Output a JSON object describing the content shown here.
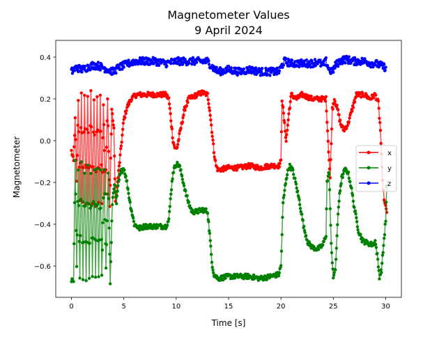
{
  "chart_data": {
    "type": "line",
    "title": "Magnetometer Values",
    "subtitle": "9 April 2024",
    "xlabel": "Time [s]",
    "ylabel": "Magnetometer",
    "xlim": [
      -1.5,
      31.5
    ],
    "ylim": [
      -0.75,
      0.48
    ],
    "xticks": [
      0,
      5,
      10,
      15,
      20,
      25,
      30
    ],
    "yticks": [
      -0.6,
      -0.4,
      -0.2,
      0.0,
      0.2,
      0.4
    ],
    "xtick_labels": [
      "0",
      "5",
      "10",
      "15",
      "20",
      "25",
      "30"
    ],
    "ytick_labels": [
      "−0.6",
      "−0.4",
      "−0.2",
      "0.0",
      "0.2",
      "0.4"
    ],
    "grid": false,
    "legend_position": "center-right",
    "series": [
      {
        "name": "x",
        "color": "#ff0000",
        "keyframes": [
          [
            0,
            -0.05
          ],
          [
            0.2,
            -0.1
          ],
          [
            0.35,
            0.1
          ],
          [
            0.5,
            -0.2
          ],
          [
            0.65,
            0.2
          ],
          [
            0.8,
            -0.28
          ],
          [
            0.95,
            0.22
          ],
          [
            1.1,
            -0.3
          ],
          [
            1.25,
            0.22
          ],
          [
            1.4,
            -0.3
          ],
          [
            1.55,
            0.22
          ],
          [
            1.7,
            -0.3
          ],
          [
            1.85,
            0.24
          ],
          [
            2.0,
            -0.3
          ],
          [
            2.15,
            0.2
          ],
          [
            2.3,
            -0.32
          ],
          [
            2.45,
            0.22
          ],
          [
            2.6,
            -0.3
          ],
          [
            2.75,
            0.22
          ],
          [
            2.9,
            -0.3
          ],
          [
            3.05,
            0.18
          ],
          [
            3.25,
            -0.25
          ],
          [
            3.45,
            0.2
          ],
          [
            3.65,
            -0.32
          ],
          [
            3.85,
            0.15
          ],
          [
            4.05,
            0.05
          ],
          [
            4.2,
            -0.3
          ],
          [
            4.4,
            -0.2
          ],
          [
            4.6,
            -0.1
          ],
          [
            4.8,
            0.0
          ],
          [
            5.0,
            0.1
          ],
          [
            5.3,
            0.16
          ],
          [
            5.7,
            0.2
          ],
          [
            6.2,
            0.22
          ],
          [
            7,
            0.22
          ],
          [
            8,
            0.22
          ],
          [
            9,
            0.22
          ],
          [
            9.3,
            0.2
          ],
          [
            9.5,
            0.1
          ],
          [
            9.7,
            0.0
          ],
          [
            9.9,
            -0.04
          ],
          [
            10.1,
            -0.03
          ],
          [
            10.4,
            0.05
          ],
          [
            10.8,
            0.15
          ],
          [
            11.2,
            0.2
          ],
          [
            12,
            0.22
          ],
          [
            12.5,
            0.23
          ],
          [
            13,
            0.22
          ],
          [
            13.2,
            0.15
          ],
          [
            13.4,
            0.05
          ],
          [
            13.6,
            -0.05
          ],
          [
            13.8,
            -0.12
          ],
          [
            14.0,
            -0.14
          ],
          [
            15,
            -0.13
          ],
          [
            16,
            -0.13
          ],
          [
            17,
            -0.12
          ],
          [
            18,
            -0.13
          ],
          [
            19,
            -0.12
          ],
          [
            19.8,
            -0.12
          ],
          [
            20.0,
            -0.1
          ],
          [
            20.1,
            0.2
          ],
          [
            20.3,
            0.1
          ],
          [
            20.5,
            0.0
          ],
          [
            20.8,
            0.15
          ],
          [
            21,
            0.22
          ],
          [
            21.5,
            0.2
          ],
          [
            22,
            0.22
          ],
          [
            23,
            0.2
          ],
          [
            24,
            0.2
          ],
          [
            24.3,
            0.2
          ],
          [
            24.5,
            0.0
          ],
          [
            24.7,
            -0.18
          ],
          [
            24.9,
            0.15
          ],
          [
            25.1,
            0.2
          ],
          [
            25.4,
            0.15
          ],
          [
            25.7,
            0.08
          ],
          [
            26.0,
            0.05
          ],
          [
            26.4,
            0.08
          ],
          [
            26.8,
            0.15
          ],
          [
            27.2,
            0.22
          ],
          [
            28,
            0.22
          ],
          [
            28.5,
            0.2
          ],
          [
            29,
            0.22
          ],
          [
            29.3,
            0.18
          ],
          [
            29.5,
            0.05
          ],
          [
            29.7,
            -0.2
          ],
          [
            29.9,
            -0.3
          ],
          [
            30.1,
            -0.34
          ]
        ]
      },
      {
        "name": "y",
        "color": "#008000",
        "keyframes": [
          [
            0,
            -0.67
          ],
          [
            0.2,
            -0.68
          ],
          [
            0.35,
            -0.1
          ],
          [
            0.5,
            -0.6
          ],
          [
            0.65,
            -0.15
          ],
          [
            0.8,
            -0.65
          ],
          [
            0.95,
            -0.1
          ],
          [
            1.1,
            -0.67
          ],
          [
            1.25,
            -0.15
          ],
          [
            1.4,
            -0.66
          ],
          [
            1.55,
            -0.12
          ],
          [
            1.7,
            -0.66
          ],
          [
            1.85,
            -0.15
          ],
          [
            2.0,
            -0.64
          ],
          [
            2.15,
            -0.13
          ],
          [
            2.3,
            -0.66
          ],
          [
            2.45,
            -0.13
          ],
          [
            2.6,
            -0.65
          ],
          [
            2.75,
            -0.15
          ],
          [
            2.9,
            -0.65
          ],
          [
            3.1,
            -0.15
          ],
          [
            3.3,
            -0.6
          ],
          [
            3.5,
            -0.15
          ],
          [
            3.7,
            -0.68
          ],
          [
            3.9,
            -0.3
          ],
          [
            4.1,
            -0.2
          ],
          [
            4.3,
            -0.3
          ],
          [
            4.5,
            -0.2
          ],
          [
            4.7,
            -0.15
          ],
          [
            5.0,
            -0.13
          ],
          [
            5.3,
            -0.2
          ],
          [
            5.6,
            -0.3
          ],
          [
            6.0,
            -0.4
          ],
          [
            6.5,
            -0.42
          ],
          [
            7,
            -0.41
          ],
          [
            8,
            -0.41
          ],
          [
            9,
            -0.41
          ],
          [
            9.3,
            -0.38
          ],
          [
            9.5,
            -0.25
          ],
          [
            9.7,
            -0.15
          ],
          [
            10.0,
            -0.11
          ],
          [
            10.3,
            -0.12
          ],
          [
            10.6,
            -0.18
          ],
          [
            10.9,
            -0.25
          ],
          [
            11.2,
            -0.3
          ],
          [
            11.5,
            -0.34
          ],
          [
            12,
            -0.34
          ],
          [
            12.5,
            -0.33
          ],
          [
            13,
            -0.34
          ],
          [
            13.2,
            -0.45
          ],
          [
            13.4,
            -0.58
          ],
          [
            13.6,
            -0.64
          ],
          [
            14,
            -0.66
          ],
          [
            15,
            -0.65
          ],
          [
            16,
            -0.65
          ],
          [
            17,
            -0.65
          ],
          [
            18,
            -0.66
          ],
          [
            19,
            -0.65
          ],
          [
            19.8,
            -0.64
          ],
          [
            20.0,
            -0.6
          ],
          [
            20.2,
            -0.3
          ],
          [
            20.5,
            -0.18
          ],
          [
            20.8,
            -0.12
          ],
          [
            21.1,
            -0.14
          ],
          [
            21.4,
            -0.2
          ],
          [
            21.8,
            -0.3
          ],
          [
            22.2,
            -0.42
          ],
          [
            22.6,
            -0.49
          ],
          [
            23,
            -0.51
          ],
          [
            23.5,
            -0.52
          ],
          [
            24,
            -0.5
          ],
          [
            24.3,
            -0.45
          ],
          [
            24.4,
            -0.2
          ],
          [
            24.6,
            -0.15
          ],
          [
            24.8,
            -0.5
          ],
          [
            25,
            -0.65
          ],
          [
            25.2,
            -0.62
          ],
          [
            25.4,
            -0.4
          ],
          [
            25.6,
            -0.25
          ],
          [
            25.8,
            -0.18
          ],
          [
            26.1,
            -0.14
          ],
          [
            26.4,
            -0.15
          ],
          [
            26.7,
            -0.22
          ],
          [
            27,
            -0.32
          ],
          [
            27.4,
            -0.43
          ],
          [
            27.8,
            -0.48
          ],
          [
            28.3,
            -0.49
          ],
          [
            28.8,
            -0.5
          ],
          [
            29,
            -0.48
          ],
          [
            29.2,
            -0.55
          ],
          [
            29.4,
            -0.65
          ],
          [
            29.6,
            -0.62
          ],
          [
            29.8,
            -0.5
          ],
          [
            30.0,
            -0.38
          ],
          [
            30.1,
            -0.22
          ]
        ]
      },
      {
        "name": "z",
        "color": "#0000ff",
        "keyframes": [
          [
            0,
            0.33
          ],
          [
            0.5,
            0.35
          ],
          [
            1,
            0.34
          ],
          [
            1.5,
            0.35
          ],
          [
            2,
            0.36
          ],
          [
            2.5,
            0.36
          ],
          [
            3,
            0.35
          ],
          [
            3.5,
            0.34
          ],
          [
            4,
            0.33
          ],
          [
            4.5,
            0.35
          ],
          [
            5,
            0.36
          ],
          [
            5.5,
            0.37
          ],
          [
            6,
            0.38
          ],
          [
            7,
            0.38
          ],
          [
            8,
            0.38
          ],
          [
            9,
            0.37
          ],
          [
            10,
            0.38
          ],
          [
            11,
            0.38
          ],
          [
            12,
            0.38
          ],
          [
            13,
            0.38
          ],
          [
            13.5,
            0.35
          ],
          [
            14,
            0.33
          ],
          [
            15,
            0.34
          ],
          [
            16,
            0.33
          ],
          [
            17,
            0.34
          ],
          [
            18,
            0.33
          ],
          [
            19,
            0.33
          ],
          [
            19.8,
            0.33
          ],
          [
            20.3,
            0.38
          ],
          [
            21,
            0.37
          ],
          [
            22,
            0.37
          ],
          [
            23,
            0.37
          ],
          [
            23.5,
            0.38
          ],
          [
            24,
            0.36
          ],
          [
            24.3,
            0.38
          ],
          [
            24.6,
            0.34
          ],
          [
            24.9,
            0.33
          ],
          [
            25.2,
            0.36
          ],
          [
            25.6,
            0.38
          ],
          [
            26.1,
            0.39
          ],
          [
            27,
            0.38
          ],
          [
            28,
            0.38
          ],
          [
            28.6,
            0.37
          ],
          [
            29,
            0.37
          ],
          [
            29.5,
            0.36
          ],
          [
            30,
            0.35
          ]
        ]
      }
    ]
  }
}
